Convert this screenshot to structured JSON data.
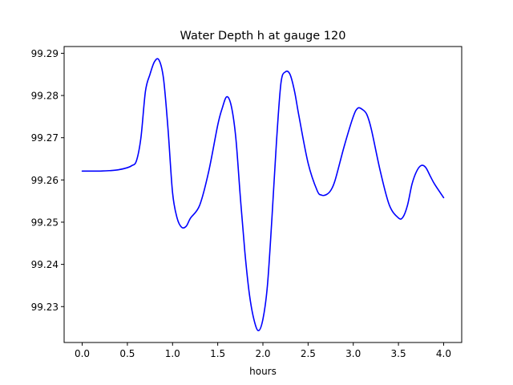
{
  "chart_data": {
    "type": "line",
    "title": "Water Depth h at gauge 120",
    "xlabel": "hours",
    "ylabel": "",
    "xlim": [
      -0.2,
      4.2
    ],
    "ylim": [
      99.2215,
      99.2916
    ],
    "xticks": [
      0.0,
      0.5,
      1.0,
      1.5,
      2.0,
      2.5,
      3.0,
      3.5,
      4.0
    ],
    "xtick_labels": [
      "0.0",
      "0.5",
      "1.0",
      "1.5",
      "2.0",
      "2.5",
      "3.0",
      "3.5",
      "4.0"
    ],
    "yticks": [
      99.23,
      99.24,
      99.25,
      99.26,
      99.27,
      99.28,
      99.29
    ],
    "ytick_labels": [
      "99.23",
      "99.24",
      "99.25",
      "99.26",
      "99.27",
      "99.28",
      "99.29"
    ],
    "grid": false,
    "series": [
      {
        "color": "#0000ff",
        "x": [
          0.0,
          0.1,
          0.2,
          0.3,
          0.4,
          0.5,
          0.55,
          0.6,
          0.65,
          0.7,
          0.75,
          0.8,
          0.85,
          0.9,
          0.95,
          1.0,
          1.05,
          1.1,
          1.15,
          1.2,
          1.3,
          1.4,
          1.5,
          1.55,
          1.6,
          1.65,
          1.7,
          1.75,
          1.8,
          1.85,
          1.9,
          1.95,
          2.0,
          2.05,
          2.1,
          2.15,
          2.2,
          2.25,
          2.3,
          2.35,
          2.4,
          2.5,
          2.6,
          2.65,
          2.7,
          2.75,
          2.8,
          2.9,
          3.0,
          3.05,
          3.1,
          3.15,
          3.2,
          3.3,
          3.4,
          3.5,
          3.55,
          3.6,
          3.65,
          3.7,
          3.75,
          3.8,
          3.85,
          3.9,
          4.0
        ],
        "y": [
          99.2621,
          99.2621,
          99.2621,
          99.2622,
          99.2624,
          99.2629,
          99.2634,
          99.2645,
          99.27,
          99.281,
          99.285,
          99.288,
          99.2884,
          99.284,
          99.272,
          99.257,
          99.251,
          99.2488,
          99.249,
          99.251,
          99.254,
          99.262,
          99.273,
          99.277,
          99.2797,
          99.2775,
          99.27,
          99.256,
          99.243,
          99.233,
          99.227,
          99.2243,
          99.227,
          99.235,
          99.251,
          99.269,
          99.283,
          99.2856,
          99.285,
          99.281,
          99.275,
          99.264,
          99.2575,
          99.2564,
          99.2565,
          99.2575,
          99.26,
          99.268,
          99.275,
          99.277,
          99.2767,
          99.2755,
          99.272,
          99.262,
          99.254,
          99.251,
          99.2512,
          99.254,
          99.259,
          99.262,
          99.2634,
          99.263,
          99.261,
          99.259,
          99.2558
        ]
      }
    ]
  }
}
